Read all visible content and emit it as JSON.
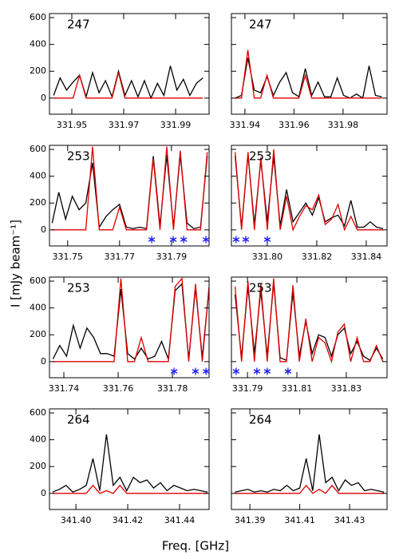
{
  "figure": {
    "x_label": "Freq. [GHz]",
    "y_label": "I [mJy beam⁻¹]"
  },
  "chart_data": [
    {
      "type": "line",
      "label": "247",
      "xlim": [
        331.9414,
        332.0029
      ],
      "ylim": [
        -120,
        630
      ],
      "xticks": [
        331.95,
        331.97,
        331.99
      ],
      "yticks": [
        0,
        200,
        400,
        600
      ],
      "x": [
        331.943,
        331.9455,
        331.948,
        331.9505,
        331.953,
        331.9555,
        331.958,
        331.9605,
        331.963,
        331.9655,
        331.968,
        331.9705,
        331.973,
        331.9755,
        331.978,
        331.9805,
        331.983,
        331.9855,
        331.988,
        331.9905,
        331.993,
        331.9955,
        331.998,
        332.0005
      ],
      "series": [
        {
          "color": "#000000",
          "values": [
            20,
            150,
            60,
            120,
            170,
            10,
            190,
            40,
            130,
            10,
            200,
            20,
            130,
            10,
            130,
            0,
            110,
            20,
            240,
            60,
            140,
            20,
            110,
            150
          ]
        },
        {
          "color": "#e00000",
          "values": [
            0,
            0,
            0,
            0,
            170,
            0,
            0,
            0,
            0,
            0,
            190,
            0,
            0,
            0,
            0,
            0,
            0,
            0,
            0,
            0,
            0,
            0,
            0,
            0
          ]
        }
      ]
    },
    {
      "type": "line",
      "label": "247",
      "xlim": [
        331.9345,
        331.9979
      ],
      "ylim": [
        -120,
        630
      ],
      "xticks": [
        331.94,
        331.96,
        331.98
      ],
      "yticks": [
        0,
        200,
        400,
        600
      ],
      "x": [
        331.936,
        331.9386,
        331.9412,
        331.9438,
        331.9464,
        331.949,
        331.9516,
        331.9542,
        331.9568,
        331.9594,
        331.962,
        331.9646,
        331.9672,
        331.9698,
        331.9724,
        331.975,
        331.9776,
        331.9802,
        331.9828,
        331.9854,
        331.988,
        331.9906,
        331.9932,
        331.9958
      ],
      "series": [
        {
          "color": "#000000",
          "values": [
            0,
            20,
            300,
            60,
            40,
            160,
            20,
            120,
            190,
            40,
            10,
            220,
            20,
            120,
            10,
            10,
            150,
            20,
            0,
            30,
            0,
            240,
            20,
            10
          ]
        },
        {
          "color": "#e00000",
          "values": [
            0,
            0,
            360,
            0,
            0,
            170,
            0,
            0,
            0,
            0,
            0,
            170,
            0,
            0,
            0,
            0,
            0,
            0,
            0,
            0,
            0,
            0,
            0,
            0
          ]
        }
      ]
    },
    {
      "type": "line",
      "label": "253",
      "xlim": [
        331.743,
        331.8045
      ],
      "ylim": [
        -120,
        630
      ],
      "xticks": [
        331.75,
        331.77,
        331.79
      ],
      "yticks": [
        0,
        200,
        400,
        600
      ],
      "x": [
        331.744,
        331.7466,
        331.7492,
        331.7518,
        331.7544,
        331.757,
        331.7596,
        331.7622,
        331.7648,
        331.7674,
        331.77,
        331.7726,
        331.7752,
        331.7778,
        331.7804,
        331.783,
        331.7856,
        331.7882,
        331.7908,
        331.7934,
        331.796,
        331.7986,
        331.8012,
        331.8038
      ],
      "series": [
        {
          "color": "#000000",
          "values": [
            50,
            280,
            80,
            250,
            150,
            200,
            500,
            20,
            100,
            150,
            190,
            20,
            10,
            20,
            10,
            550,
            30,
            560,
            20,
            560,
            50,
            10,
            20,
            550
          ]
        },
        {
          "color": "#e00000",
          "values": [
            0,
            0,
            0,
            0,
            0,
            0,
            620,
            0,
            0,
            0,
            170,
            0,
            0,
            0,
            0,
            530,
            0,
            620,
            0,
            590,
            0,
            0,
            0,
            580
          ]
        }
      ],
      "markers": {
        "color": "#1a1aff",
        "x": [
          331.7824,
          331.7907,
          331.7947,
          331.8033
        ]
      }
    },
    {
      "type": "line",
      "label": "253",
      "xlim": [
        331.7855,
        331.8484
      ],
      "ylim": [
        -120,
        630
      ],
      "xticks": [
        {
          "value": 331.8,
          "label": "331.80"
        },
        331.82,
        331.84
      ],
      "yticks": [
        0,
        200,
        400,
        600
      ],
      "x": [
        331.787,
        331.7896,
        331.7922,
        331.7948,
        331.7974,
        331.8,
        331.8026,
        331.8052,
        331.8078,
        331.8104,
        331.813,
        331.8156,
        331.8182,
        331.8208,
        331.8234,
        331.826,
        331.8286,
        331.8312,
        331.8338,
        331.8364,
        331.839,
        331.8416,
        331.8442,
        331.8468
      ],
      "series": [
        {
          "color": "#000000",
          "values": [
            550,
            20,
            560,
            40,
            520,
            60,
            550,
            30,
            300,
            60,
            130,
            200,
            110,
            240,
            60,
            90,
            110,
            30,
            220,
            20,
            20,
            60,
            20,
            10
          ]
        },
        {
          "color": "#e00000",
          "values": [
            580,
            0,
            580,
            0,
            540,
            0,
            600,
            0,
            250,
            0,
            100,
            180,
            150,
            260,
            40,
            80,
            190,
            0,
            100,
            0,
            0,
            0,
            0,
            0
          ]
        }
      ],
      "markers": {
        "color": "#1a1aff",
        "x": [
          331.7874,
          331.7913,
          331.8
        ]
      }
    },
    {
      "type": "line",
      "label": "253",
      "xlim": [
        331.7347,
        331.7935
      ],
      "ylim": [
        -120,
        630
      ],
      "xticks": [
        331.74,
        331.76,
        331.78
      ],
      "yticks": [
        0,
        200,
        400,
        600
      ],
      "x": [
        331.736,
        331.7385,
        331.741,
        331.7435,
        331.746,
        331.7485,
        331.751,
        331.7535,
        331.756,
        331.7585,
        331.761,
        331.7635,
        331.766,
        331.7685,
        331.771,
        331.7735,
        331.776,
        331.7785,
        331.781,
        331.7835,
        331.786,
        331.7885,
        331.791,
        331.7935
      ],
      "series": [
        {
          "color": "#000000",
          "values": [
            20,
            120,
            40,
            270,
            100,
            250,
            180,
            60,
            60,
            40,
            540,
            60,
            20,
            100,
            20,
            40,
            150,
            20,
            530,
            580,
            20,
            550,
            30,
            550
          ]
        },
        {
          "color": "#e00000",
          "values": [
            0,
            0,
            0,
            0,
            0,
            0,
            0,
            0,
            0,
            0,
            620,
            0,
            0,
            180,
            0,
            0,
            0,
            0,
            560,
            620,
            0,
            580,
            0,
            560
          ]
        }
      ],
      "markers": {
        "color": "#1a1aff",
        "x": [
          331.7806,
          331.7885,
          331.7924
        ]
      }
    },
    {
      "type": "line",
      "label": "253",
      "xlim": [
        331.7835,
        331.8465
      ],
      "ylim": [
        -120,
        630
      ],
      "xticks": [
        331.79,
        331.81,
        331.83
      ],
      "yticks": [
        0,
        200,
        400,
        600
      ],
      "x": [
        331.785,
        331.7876,
        331.7902,
        331.7928,
        331.7954,
        331.798,
        331.8006,
        331.8032,
        331.8058,
        331.8084,
        331.811,
        331.8136,
        331.8162,
        331.8188,
        331.8214,
        331.824,
        331.8266,
        331.8292,
        331.8318,
        331.8344,
        331.837,
        331.8396,
        331.8422,
        331.8448
      ],
      "series": [
        {
          "color": "#000000",
          "values": [
            500,
            30,
            560,
            60,
            530,
            40,
            590,
            30,
            10,
            520,
            40,
            300,
            60,
            200,
            180,
            40,
            200,
            250,
            60,
            150,
            40,
            10,
            100,
            20
          ]
        },
        {
          "color": "#e00000",
          "values": [
            560,
            0,
            600,
            0,
            580,
            0,
            620,
            0,
            0,
            570,
            0,
            320,
            0,
            180,
            140,
            0,
            220,
            280,
            0,
            180,
            0,
            0,
            120,
            0
          ]
        }
      ],
      "markers": {
        "color": "#1a1aff",
        "x": [
          331.7854,
          331.7938,
          331.798,
          331.8064
        ]
      }
    },
    {
      "type": "line",
      "label": "264",
      "xlim": [
        341.3898,
        341.4514
      ],
      "ylim": [
        -120,
        630
      ],
      "xticks": [
        {
          "value": 341.4,
          "label": "341.40"
        },
        341.42,
        341.44
      ],
      "yticks": [
        0,
        200,
        400,
        600
      ],
      "x": [
        341.391,
        341.3936,
        341.3962,
        341.3988,
        341.4014,
        341.404,
        341.4066,
        341.4092,
        341.4118,
        341.4144,
        341.417,
        341.4196,
        341.4222,
        341.4248,
        341.4274,
        341.43,
        341.4326,
        341.4352,
        341.4378,
        341.4404,
        341.443,
        341.4456,
        341.4482,
        341.4508
      ],
      "series": [
        {
          "color": "#000000",
          "values": [
            10,
            30,
            60,
            10,
            30,
            60,
            260,
            20,
            440,
            60,
            120,
            20,
            120,
            80,
            100,
            40,
            80,
            20,
            60,
            40,
            20,
            30,
            20,
            10
          ]
        },
        {
          "color": "#e00000",
          "values": [
            0,
            0,
            0,
            0,
            0,
            0,
            60,
            0,
            20,
            0,
            60,
            0,
            0,
            0,
            0,
            0,
            0,
            0,
            0,
            0,
            0,
            0,
            0,
            0
          ]
        }
      ]
    },
    {
      "type": "line",
      "label": "264",
      "xlim": [
        341.3826,
        341.445
      ],
      "ylim": [
        -120,
        630
      ],
      "xticks": [
        341.39,
        341.41,
        341.43
      ],
      "yticks": [
        0,
        200,
        400,
        600
      ],
      "x": [
        341.384,
        341.3866,
        341.3892,
        341.3918,
        341.3944,
        341.397,
        341.3996,
        341.4022,
        341.4048,
        341.4074,
        341.41,
        341.4126,
        341.4152,
        341.4178,
        341.4204,
        341.423,
        341.4256,
        341.4282,
        341.4308,
        341.4334,
        341.436,
        341.4386,
        341.4412,
        341.4438
      ],
      "series": [
        {
          "color": "#000000",
          "values": [
            10,
            20,
            30,
            10,
            20,
            10,
            30,
            20,
            60,
            20,
            40,
            260,
            20,
            440,
            80,
            120,
            20,
            100,
            60,
            80,
            20,
            30,
            20,
            10
          ]
        },
        {
          "color": "#e00000",
          "values": [
            0,
            0,
            0,
            0,
            0,
            0,
            0,
            0,
            0,
            0,
            0,
            60,
            0,
            30,
            0,
            60,
            0,
            0,
            0,
            0,
            0,
            0,
            0,
            0
          ]
        }
      ]
    }
  ]
}
